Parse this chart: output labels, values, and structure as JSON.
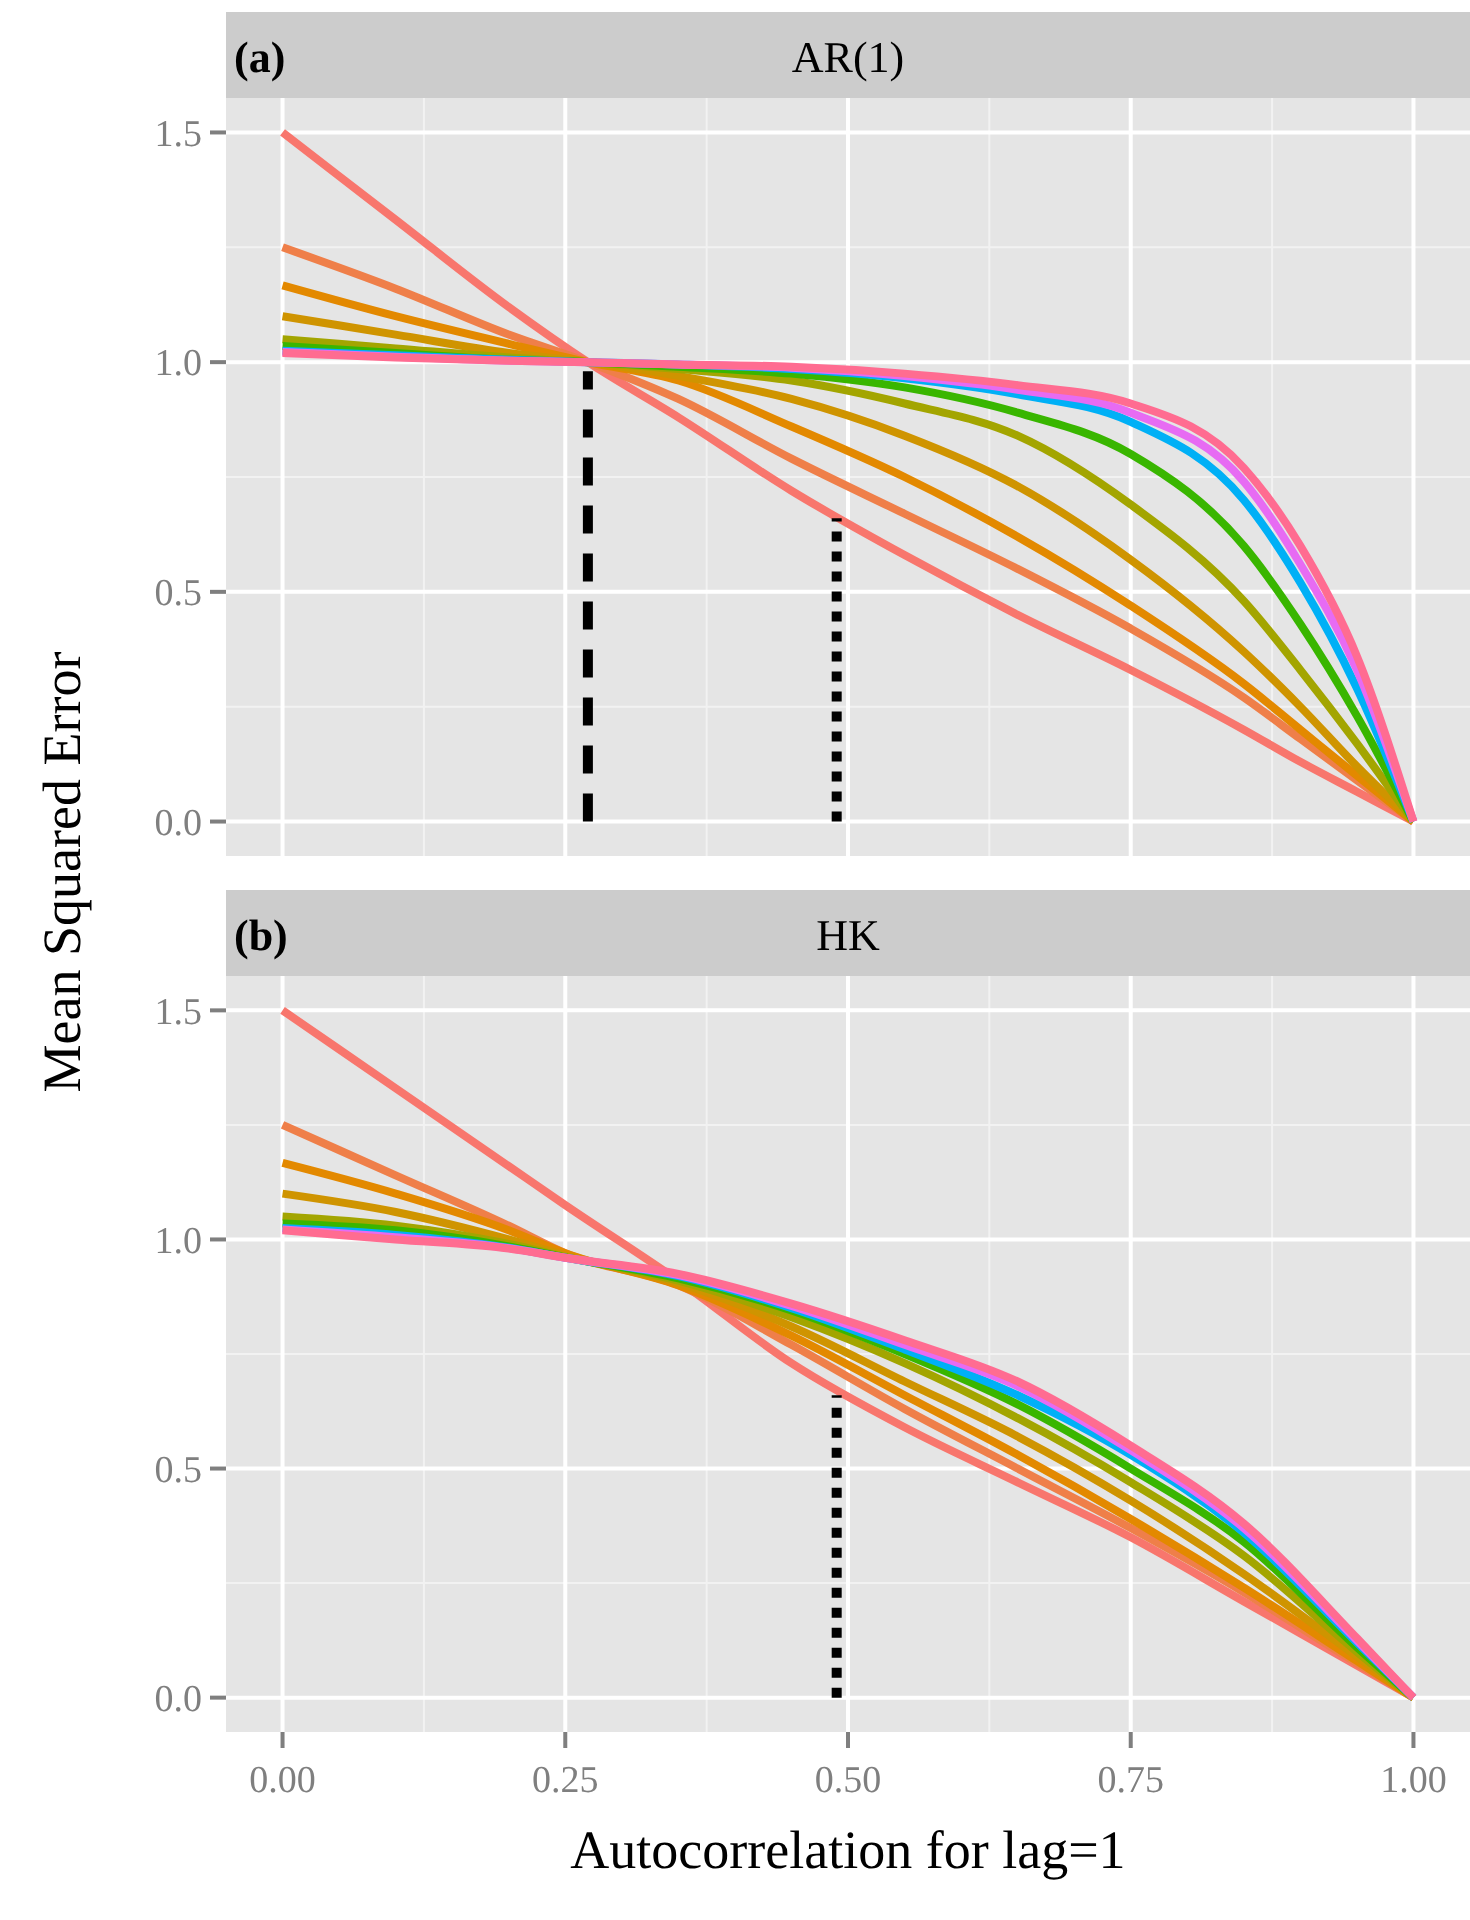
{
  "chart_data": [
    {
      "type": "line",
      "title": "AR(1)",
      "ylabel": "Mean Squared Error",
      "annotations": [
        "(a)"
      ],
      "xlim": [
        -0.05,
        1.05
      ],
      "ylim": [
        -0.075,
        1.575
      ],
      "xticks": [
        0,
        0.25,
        0.5,
        0.75,
        1
      ],
      "yticks": [
        {
          "value": 0,
          "label": "0.0"
        },
        {
          "value": 0.5,
          "label": "0.5"
        },
        {
          "value": 1,
          "label": "1.0"
        },
        {
          "value": 1.5,
          "label": "1.5"
        }
      ],
      "grid": true,
      "tick_labels": "y",
      "line_style": "solid",
      "marker": "none",
      "series": [
        {
          "color": "#f8766d",
          "x": [
            0,
            0.1,
            0.2,
            0.27,
            0.35,
            0.45,
            0.55,
            0.65,
            0.75,
            0.85,
            0.9,
            0.95,
            1
          ],
          "values": [
            1.5,
            1.31,
            1.12,
            1.0,
            0.88,
            0.72,
            0.58,
            0.45,
            0.33,
            0.2,
            0.13,
            0.065,
            0
          ]
        },
        {
          "color": "#ef7f49",
          "x": [
            0,
            0.1,
            0.2,
            0.27,
            0.35,
            0.45,
            0.55,
            0.65,
            0.75,
            0.85,
            0.9,
            0.95,
            1
          ],
          "values": [
            1.25,
            1.16,
            1.06,
            1.0,
            0.92,
            0.79,
            0.67,
            0.55,
            0.42,
            0.27,
            0.18,
            0.09,
            0
          ]
        },
        {
          "color": "#e38900",
          "x": [
            0,
            0.1,
            0.2,
            0.27,
            0.35,
            0.45,
            0.55,
            0.65,
            0.75,
            0.85,
            0.9,
            0.95,
            1
          ],
          "values": [
            1.167,
            1.1,
            1.04,
            1.0,
            0.96,
            0.86,
            0.75,
            0.62,
            0.47,
            0.3,
            0.2,
            0.1,
            0
          ]
        },
        {
          "color": "#cf9400",
          "x": [
            0,
            0.1,
            0.2,
            0.27,
            0.35,
            0.45,
            0.55,
            0.65,
            0.75,
            0.85,
            0.9,
            0.95,
            1
          ],
          "values": [
            1.1,
            1.06,
            1.02,
            1.0,
            0.97,
            0.92,
            0.84,
            0.73,
            0.57,
            0.37,
            0.25,
            0.12,
            0
          ]
        },
        {
          "color": "#a3a500",
          "x": [
            0,
            0.1,
            0.2,
            0.27,
            0.35,
            0.45,
            0.55,
            0.65,
            0.75,
            0.85,
            0.9,
            0.95,
            1
          ],
          "values": [
            1.05,
            1.03,
            1.01,
            1.0,
            0.985,
            0.96,
            0.91,
            0.84,
            0.69,
            0.48,
            0.33,
            0.17,
            0
          ]
        },
        {
          "color": "#39b600",
          "x": [
            0,
            0.1,
            0.2,
            0.27,
            0.35,
            0.45,
            0.55,
            0.65,
            0.75,
            0.85,
            0.9,
            0.95,
            1
          ],
          "values": [
            1.035,
            1.02,
            1.005,
            1.0,
            0.99,
            0.975,
            0.945,
            0.89,
            0.8,
            0.6,
            0.43,
            0.23,
            0
          ]
        },
        {
          "color": "#00b0f6",
          "x": [
            0,
            0.1,
            0.2,
            0.27,
            0.35,
            0.45,
            0.55,
            0.65,
            0.75,
            0.85,
            0.9,
            0.95,
            1
          ],
          "values": [
            1.025,
            1.015,
            1.005,
            1.0,
            0.995,
            0.985,
            0.965,
            0.93,
            0.87,
            0.7,
            0.52,
            0.29,
            0
          ]
        },
        {
          "color": "#e76bf3",
          "x": [
            0,
            0.1,
            0.2,
            0.27,
            0.35,
            0.45,
            0.55,
            0.65,
            0.75,
            0.85,
            0.9,
            0.95,
            1
          ],
          "values": [
            1.022,
            1.012,
            1.003,
            1.0,
            0.995,
            0.988,
            0.97,
            0.94,
            0.89,
            0.74,
            0.56,
            0.33,
            0
          ]
        },
        {
          "color": "#ff6c91",
          "x": [
            0,
            0.1,
            0.2,
            0.27,
            0.35,
            0.45,
            0.55,
            0.65,
            0.75,
            0.85,
            0.9,
            0.95,
            1
          ],
          "values": [
            1.02,
            1.01,
            1.003,
            1.0,
            0.995,
            0.99,
            0.975,
            0.95,
            0.91,
            0.77,
            0.6,
            0.36,
            0
          ]
        },
        {
          "color": "#000000",
          "line_style": "dashed",
          "x": [
            0.27,
            0.27
          ],
          "values": [
            0,
            0.98
          ]
        },
        {
          "color": "#000000",
          "line_style": "dotted",
          "x": [
            0.49,
            0.49
          ],
          "values": [
            0,
            0.66
          ]
        }
      ]
    },
    {
      "type": "line",
      "title": "HK",
      "xlabel": "Autocorrelation for lag=1",
      "annotations": [
        "(b)"
      ],
      "xlim": [
        -0.05,
        1.05
      ],
      "ylim": [
        -0.075,
        1.575
      ],
      "xticks": [
        {
          "value": 0,
          "label": "0.00"
        },
        {
          "value": 0.25,
          "label": "0.25"
        },
        {
          "value": 0.5,
          "label": "0.50"
        },
        {
          "value": 0.75,
          "label": "0.75"
        },
        {
          "value": 1,
          "label": "1.00"
        }
      ],
      "yticks": [
        {
          "value": 0,
          "label": "0.0"
        },
        {
          "value": 0.5,
          "label": "0.5"
        },
        {
          "value": 1,
          "label": "1.0"
        },
        {
          "value": 1.5,
          "label": "1.5"
        }
      ],
      "grid": true,
      "line_style": "solid",
      "marker": "none",
      "series": [
        {
          "color": "#f8766d",
          "x": [
            0,
            0.1,
            0.2,
            0.25,
            0.35,
            0.45,
            0.55,
            0.65,
            0.75,
            0.85,
            0.95,
            1
          ],
          "values": [
            1.5,
            1.33,
            1.16,
            1.075,
            0.91,
            0.73,
            0.59,
            0.47,
            0.35,
            0.21,
            0.07,
            0
          ]
        },
        {
          "color": "#ef7f49",
          "x": [
            0,
            0.1,
            0.2,
            0.25,
            0.35,
            0.45,
            0.55,
            0.65,
            0.75,
            0.85,
            0.95,
            1
          ],
          "values": [
            1.25,
            1.14,
            1.03,
            0.97,
            0.9,
            0.77,
            0.63,
            0.5,
            0.37,
            0.23,
            0.075,
            0
          ]
        },
        {
          "color": "#e38900",
          "x": [
            0,
            0.1,
            0.2,
            0.25,
            0.35,
            0.45,
            0.55,
            0.65,
            0.75,
            0.85,
            0.95,
            1
          ],
          "values": [
            1.167,
            1.1,
            1.02,
            0.97,
            0.9,
            0.79,
            0.66,
            0.53,
            0.39,
            0.24,
            0.08,
            0
          ]
        },
        {
          "color": "#cf9400",
          "x": [
            0,
            0.1,
            0.2,
            0.25,
            0.35,
            0.45,
            0.55,
            0.65,
            0.75,
            0.85,
            0.95,
            1
          ],
          "values": [
            1.1,
            1.06,
            1.0,
            0.965,
            0.905,
            0.81,
            0.69,
            0.57,
            0.43,
            0.27,
            0.09,
            0
          ]
        },
        {
          "color": "#a3a500",
          "x": [
            0,
            0.1,
            0.2,
            0.25,
            0.35,
            0.45,
            0.55,
            0.65,
            0.75,
            0.85,
            0.95,
            1
          ],
          "values": [
            1.05,
            1.03,
            0.99,
            0.962,
            0.91,
            0.83,
            0.73,
            0.61,
            0.47,
            0.31,
            0.1,
            0
          ]
        },
        {
          "color": "#39b600",
          "x": [
            0,
            0.1,
            0.2,
            0.25,
            0.35,
            0.45,
            0.55,
            0.65,
            0.75,
            0.85,
            0.95,
            1
          ],
          "values": [
            1.035,
            1.02,
            0.985,
            0.961,
            0.915,
            0.845,
            0.75,
            0.64,
            0.5,
            0.34,
            0.11,
            0
          ]
        },
        {
          "color": "#00b0f6",
          "x": [
            0,
            0.1,
            0.2,
            0.25,
            0.35,
            0.45,
            0.55,
            0.65,
            0.75,
            0.85,
            0.95,
            1
          ],
          "values": [
            1.025,
            1.01,
            0.982,
            0.96,
            0.92,
            0.85,
            0.76,
            0.66,
            0.53,
            0.36,
            0.12,
            0
          ]
        },
        {
          "color": "#e76bf3",
          "x": [
            0,
            0.1,
            0.2,
            0.25,
            0.35,
            0.45,
            0.55,
            0.65,
            0.75,
            0.85,
            0.95,
            1
          ],
          "values": [
            1.022,
            1.005,
            0.981,
            0.96,
            0.922,
            0.855,
            0.77,
            0.68,
            0.54,
            0.37,
            0.125,
            0
          ]
        },
        {
          "color": "#ff6c91",
          "x": [
            0,
            0.1,
            0.2,
            0.25,
            0.35,
            0.45,
            0.55,
            0.65,
            0.75,
            0.85,
            0.95,
            1
          ],
          "values": [
            1.02,
            1.0,
            0.98,
            0.96,
            0.925,
            0.86,
            0.78,
            0.69,
            0.55,
            0.38,
            0.13,
            0
          ]
        },
        {
          "color": "#000000",
          "line_style": "dotted",
          "x": [
            0.49,
            0.49
          ],
          "values": [
            0,
            0.66
          ]
        }
      ]
    }
  ]
}
